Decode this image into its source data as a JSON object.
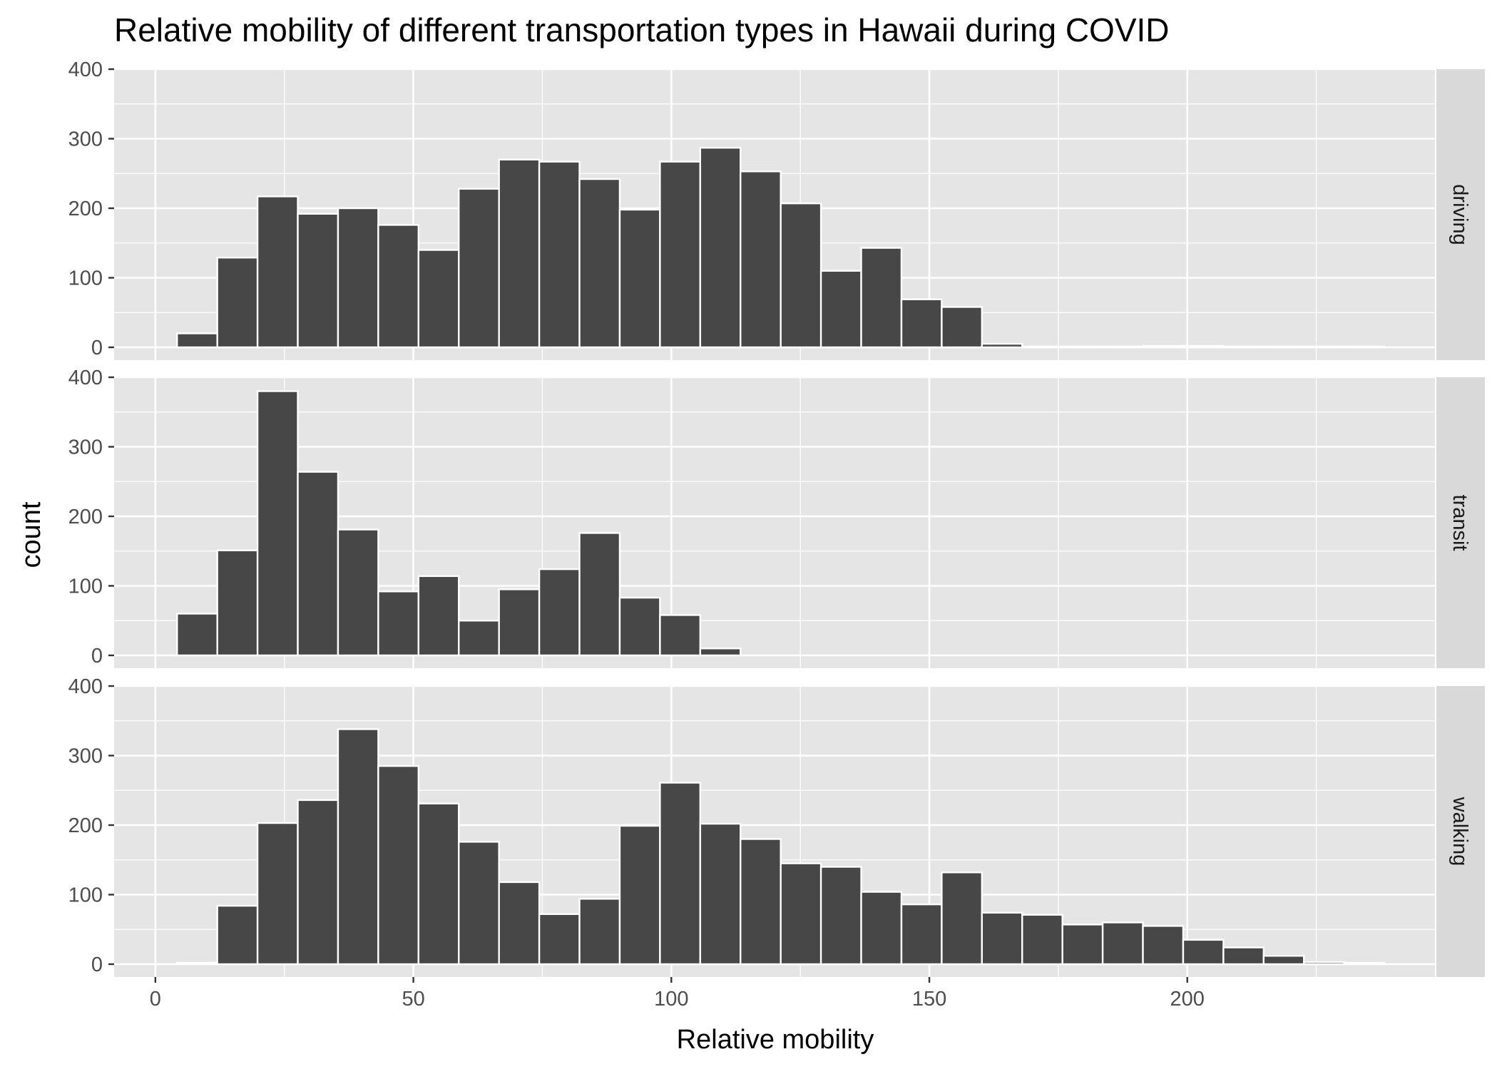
{
  "chart_data": {
    "type": "bar",
    "subtype": "faceted-histogram",
    "title": "Relative mobility of different transportation types in Hawaii during COVID",
    "xlabel": "Relative mobility",
    "ylabel": "count",
    "xlim": [
      -8,
      248
    ],
    "ylim": [
      0,
      400
    ],
    "x_ticks": [
      0,
      50,
      100,
      150,
      200
    ],
    "y_ticks": [
      0,
      100,
      200,
      300,
      400
    ],
    "grid": true,
    "facet_layout": "rows",
    "strip_position": "right",
    "bin_width": 7.8,
    "bin_start": 4.2,
    "colors": {
      "bar_fill": "#474747",
      "bar_stroke": "#ffffff",
      "panel_bg": "#e5e5e5",
      "strip_bg": "#d9d9d9",
      "grid": "#ffffff"
    },
    "series": [
      {
        "name": "driving",
        "values": [
          20,
          129,
          217,
          192,
          200,
          176,
          140,
          228,
          270,
          267,
          242,
          198,
          267,
          287,
          253,
          207,
          110,
          143,
          69,
          58,
          5,
          1,
          1,
          1,
          2,
          2,
          1,
          1,
          1,
          1
        ]
      },
      {
        "name": "transit",
        "values": [
          60,
          151,
          380,
          264,
          181,
          92,
          114,
          50,
          95,
          124,
          176,
          83,
          58,
          10,
          0,
          0,
          0,
          0,
          0,
          0,
          0,
          0,
          0,
          0,
          0,
          0,
          0,
          0,
          0,
          0
        ]
      },
      {
        "name": "walking",
        "values": [
          2,
          84,
          203,
          236,
          338,
          285,
          231,
          176,
          118,
          72,
          94,
          199,
          261,
          202,
          180,
          145,
          140,
          104,
          86,
          132,
          74,
          71,
          57,
          60,
          55,
          35,
          24,
          12,
          3,
          2
        ]
      }
    ]
  }
}
